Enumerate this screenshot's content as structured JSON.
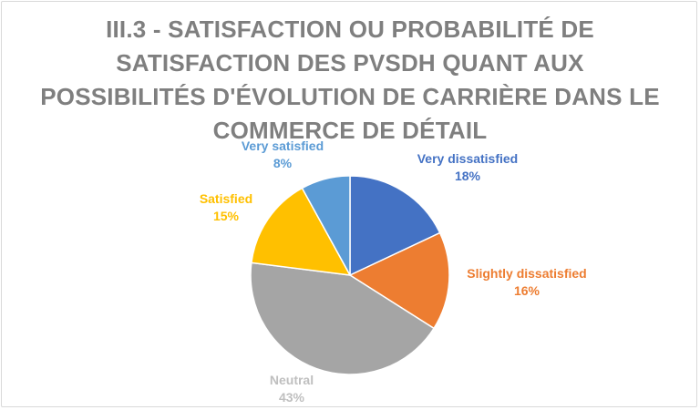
{
  "chart_data": {
    "type": "pie",
    "title_lines": [
      "III.3 - SATISFACTION OU PROBABILITÉ DE",
      "SATISFACTION DES PVSDH QUANT AUX",
      "POSSIBILITÉS D'ÉVOLUTION DE CARRIÈRE DANS LE",
      "COMMERCE DE DÉTAIL"
    ],
    "slices": [
      {
        "label": "Very dissatisfied",
        "value": 18,
        "value_label": "18%",
        "color": "#4472c4"
      },
      {
        "label": "Slightly dissatisfied",
        "value": 16,
        "value_label": "16%",
        "color": "#ed7d31"
      },
      {
        "label": "Neutral",
        "value": 43,
        "value_label": "43%",
        "color": "#a5a5a5"
      },
      {
        "label": "Satisfied",
        "value": 15,
        "value_label": "15%",
        "color": "#ffc000"
      },
      {
        "label": "Very satisfied",
        "value": 8,
        "value_label": "8%",
        "color": "#5b9bd5"
      }
    ],
    "label_colors": [
      "#4472c4",
      "#ed7d31",
      "#bfbfbf",
      "#ffc000",
      "#5b9bd5"
    ],
    "legend": "none"
  }
}
